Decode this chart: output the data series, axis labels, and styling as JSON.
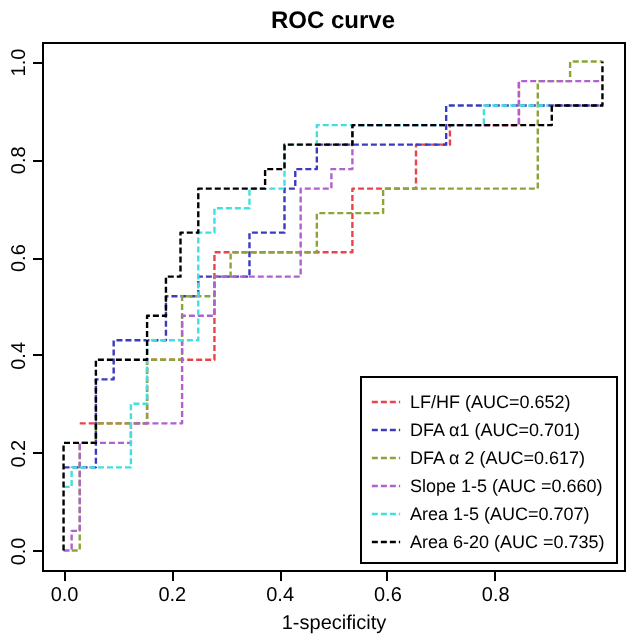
{
  "chart_data": {
    "type": "step",
    "title": "ROC curve",
    "xlabel": "1-specificity",
    "xlim": [
      -0.04,
      1.04
    ],
    "xticks": [
      {
        "value": 0,
        "label": "0.0"
      },
      0.2,
      0.4,
      0.6,
      0.8
    ],
    "ylim": [
      -0.04,
      1.04
    ],
    "yticks": [
      {
        "value": 0,
        "label": "0.0"
      },
      0.2,
      0.4,
      0.6,
      0.8,
      {
        "value": 1,
        "label": "1.0"
      }
    ],
    "grid": false,
    "legend": "bottom right",
    "line_style": "dashed",
    "series": [
      {
        "name": "LF/HF (AUC=0.652)",
        "color": "#e8454a",
        "x": [
          0.03,
          0.155,
          0.28,
          0.536,
          0.654,
          0.717,
          0.845
        ],
        "values": [
          0.26,
          0.39,
          0.61,
          0.74,
          0.83,
          0.87,
          0.96
        ]
      },
      {
        "name": "DFA α1 (AUC=0.701)",
        "color": "#3b3bbf",
        "x": [
          0,
          0.06,
          0.093,
          0.19,
          0.25,
          0.345,
          0.41,
          0.43,
          0.47,
          0.71,
          1
        ],
        "values": [
          0.17,
          0.35,
          0.43,
          0.52,
          0.56,
          0.65,
          0.74,
          0.78,
          0.83,
          0.91,
          0.91
        ]
      },
      {
        "name": "DFA α 2 (AUC=0.617)",
        "color": "#8aa53a",
        "x": [
          0.015,
          0.03,
          0.06,
          0.155,
          0.22,
          0.28,
          0.31,
          0.47,
          0.593,
          0.88,
          0.94,
          1
        ],
        "values": [
          0,
          0.22,
          0.26,
          0.39,
          0.52,
          0.56,
          0.61,
          0.69,
          0.74,
          0.96,
          1,
          1
        ]
      },
      {
        "name": "Slope 1-5 (AUC =0.660)",
        "color": "#b060d0",
        "x": [
          0,
          0.015,
          0.03,
          0.125,
          0.22,
          0.28,
          0.44,
          0.497,
          0.536,
          0.845,
          1
        ],
        "values": [
          0,
          0.04,
          0.22,
          0.26,
          0.48,
          0.56,
          0.74,
          0.78,
          0.87,
          0.96,
          0.96
        ]
      },
      {
        "name": "Area 1-5 (AUC=0.707)",
        "color": "#40e0e0",
        "x": [
          0,
          0.015,
          0.125,
          0.155,
          0.25,
          0.28,
          0.345,
          0.41,
          0.47,
          0.78,
          0.9
        ],
        "values": [
          0.13,
          0.17,
          0.3,
          0.43,
          0.65,
          0.7,
          0.74,
          0.83,
          0.87,
          0.91,
          0.91
        ]
      },
      {
        "name": "Area 6-20 (AUC =0.735)",
        "color": "#000000",
        "x": [
          0,
          0,
          0.06,
          0.155,
          0.19,
          0.217,
          0.25,
          0.374,
          0.41,
          0.536,
          0.906,
          1
        ],
        "values": [
          0,
          0.22,
          0.39,
          0.48,
          0.56,
          0.65,
          0.74,
          0.78,
          0.83,
          0.87,
          0.91,
          1
        ]
      }
    ]
  }
}
